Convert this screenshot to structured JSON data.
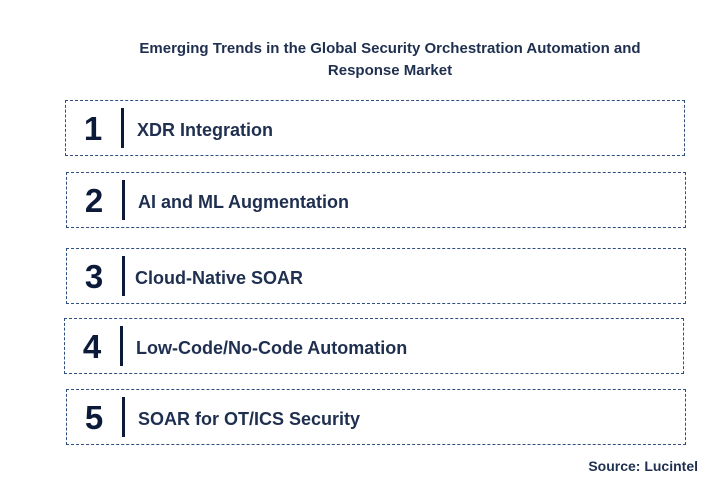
{
  "title": {
    "line1": "Emerging Trends in the Global Security Orchestration Automation and",
    "line2": "Response Market"
  },
  "trends": [
    {
      "number": "1",
      "label": "XDR Integration"
    },
    {
      "number": "2",
      "label": "AI and ML Augmentation"
    },
    {
      "number": "3",
      "label": "Cloud-Native SOAR"
    },
    {
      "number": "4",
      "label": "Low-Code/No-Code Automation"
    },
    {
      "number": "5",
      "label": "SOAR for OT/ICS Security"
    }
  ],
  "source": "Source: Lucintel",
  "colors": {
    "text": "#1f2f4f",
    "number": "#0c1a3a",
    "border": "#2f4f7f"
  }
}
